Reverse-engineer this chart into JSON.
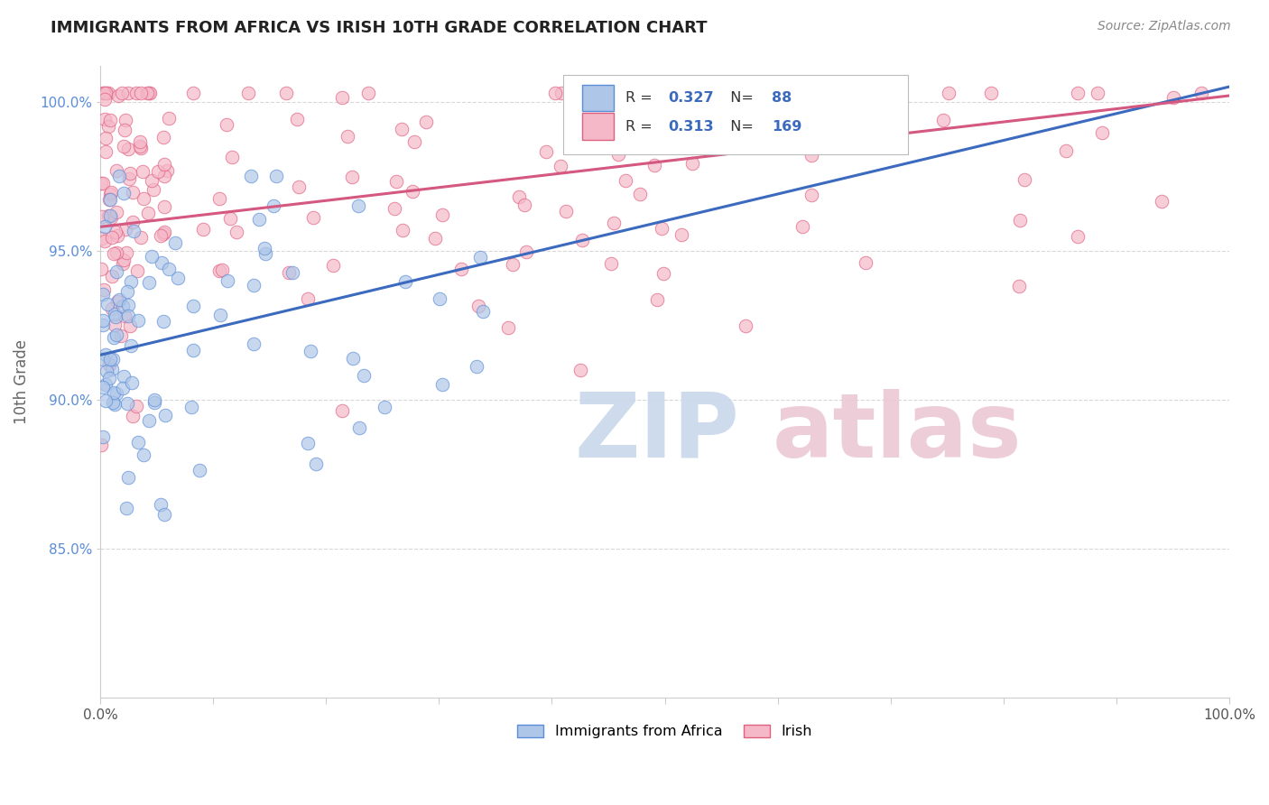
{
  "title": "IMMIGRANTS FROM AFRICA VS IRISH 10TH GRADE CORRELATION CHART",
  "source_text": "Source: ZipAtlas.com",
  "ylabel": "10th Grade",
  "xlim": [
    0.0,
    1.0
  ],
  "legend_labels": [
    "Immigrants from Africa",
    "Irish"
  ],
  "r_africa": 0.327,
  "n_africa": 88,
  "r_irish": 0.313,
  "n_irish": 169,
  "color_africa_fill": "#aec6e8",
  "color_africa_edge": "#5b8dd9",
  "color_irish_fill": "#f5b8c8",
  "color_irish_edge": "#e06080",
  "color_africa_line": "#3b6abf",
  "color_irish_line": "#d45880",
  "background_color": "#ffffff",
  "grid_color": "#d8d8d8",
  "ytick_color": "#5b8dd9",
  "ytick_values": [
    0.85,
    0.9,
    0.95,
    1.0
  ],
  "ytick_labels": [
    "85.0%",
    "90.0%",
    "95.0%",
    "100.0%"
  ],
  "xtick_labels": [
    "0.0%",
    "100.0%"
  ],
  "ylim": [
    0.8,
    1.012
  ],
  "africa_line_x": [
    0.0,
    1.0
  ],
  "africa_line_y": [
    0.915,
    1.005
  ],
  "irish_line_x": [
    0.0,
    1.0
  ],
  "irish_line_y": [
    0.958,
    1.002
  ],
  "watermark_zip_color": "#c8d8ec",
  "watermark_atlas_color": "#ecc8d4"
}
